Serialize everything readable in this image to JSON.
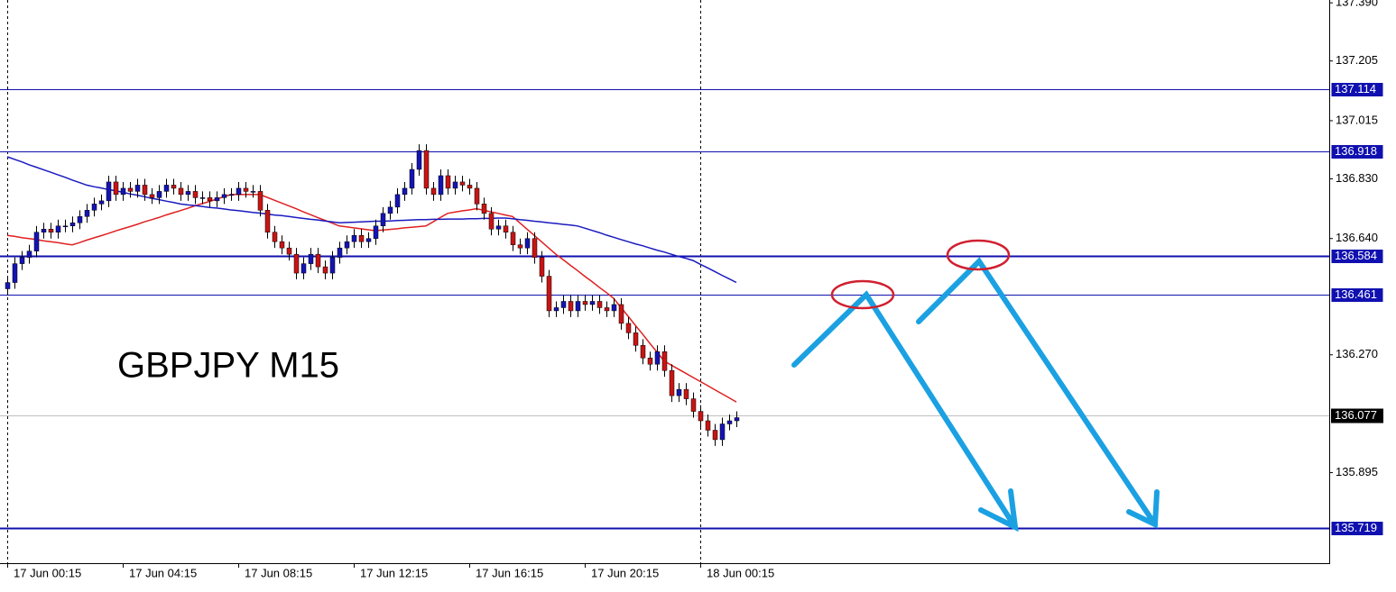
{
  "chart_data": {
    "type": "candlestick",
    "title": "GBPJPY M15",
    "categories": [
      "17 Jun 00:15",
      null,
      null,
      null,
      null,
      null,
      null,
      null,
      null,
      null,
      null,
      null,
      null,
      null,
      null,
      null,
      "17 Jun 04:15",
      null,
      null,
      null,
      null,
      null,
      null,
      null,
      null,
      null,
      null,
      null,
      null,
      null,
      null,
      null,
      "17 Jun 08:15",
      null,
      null,
      null,
      null,
      null,
      null,
      null,
      null,
      null,
      null,
      null,
      null,
      null,
      null,
      null,
      "17 Jun 12:15",
      null,
      null,
      null,
      null,
      null,
      null,
      null,
      null,
      null,
      null,
      null,
      null,
      null,
      null,
      null,
      "17 Jun 16:15",
      null,
      null,
      null,
      null,
      null,
      null,
      null,
      null,
      null,
      null,
      null,
      null,
      null,
      null,
      null,
      "17 Jun 20:15",
      null,
      null,
      null,
      null,
      null,
      null,
      null,
      null,
      null,
      null,
      null,
      null,
      null,
      null,
      null,
      "18 Jun 00:15",
      null,
      null,
      null,
      null,
      null
    ],
    "open": [
      136.48,
      136.5,
      136.56,
      136.58,
      136.6,
      136.66,
      136.67,
      136.66,
      136.68,
      136.68,
      136.69,
      136.71,
      136.73,
      136.75,
      136.76,
      136.82,
      136.78,
      136.8,
      136.79,
      136.81,
      136.78,
      136.77,
      136.79,
      136.81,
      136.8,
      136.78,
      136.79,
      136.77,
      136.77,
      136.76,
      136.77,
      136.78,
      136.78,
      136.8,
      136.79,
      136.79,
      136.73,
      136.66,
      136.63,
      136.61,
      136.59,
      136.53,
      136.56,
      136.59,
      136.55,
      136.53,
      136.58,
      136.61,
      136.63,
      136.65,
      136.63,
      136.64,
      136.68,
      136.72,
      136.74,
      136.78,
      136.8,
      136.86,
      136.92,
      136.8,
      136.78,
      136.84,
      136.8,
      136.82,
      136.81,
      136.8,
      136.75,
      136.72,
      136.67,
      136.68,
      136.66,
      136.62,
      136.61,
      136.64,
      136.58,
      136.52,
      136.41,
      136.42,
      136.44,
      136.41,
      136.44,
      136.43,
      136.44,
      136.42,
      136.41,
      136.43,
      136.37,
      136.34,
      136.3,
      136.26,
      136.24,
      136.28,
      136.22,
      136.14,
      136.16,
      136.13,
      136.09,
      136.06,
      136.03,
      136.0,
      136.05,
      136.06
    ],
    "high": [
      136.52,
      136.58,
      136.6,
      136.62,
      136.68,
      136.69,
      136.69,
      136.7,
      136.7,
      136.71,
      136.73,
      136.75,
      136.77,
      136.78,
      136.84,
      136.84,
      136.82,
      136.82,
      136.83,
      136.83,
      136.8,
      136.81,
      136.83,
      136.83,
      136.82,
      136.81,
      136.81,
      136.79,
      136.79,
      136.79,
      136.8,
      136.8,
      136.82,
      136.82,
      136.81,
      136.81,
      136.75,
      136.68,
      136.65,
      136.63,
      136.61,
      136.58,
      136.61,
      136.61,
      136.57,
      136.6,
      136.63,
      136.65,
      136.67,
      136.67,
      136.66,
      136.7,
      136.74,
      136.76,
      136.8,
      136.82,
      136.88,
      136.94,
      136.94,
      136.82,
      136.86,
      136.86,
      136.84,
      136.84,
      136.83,
      136.82,
      136.77,
      136.74,
      136.7,
      136.7,
      136.68,
      136.64,
      136.66,
      136.66,
      136.6,
      136.54,
      136.44,
      136.46,
      136.46,
      136.46,
      136.46,
      136.46,
      136.46,
      136.44,
      136.45,
      136.45,
      136.39,
      136.36,
      136.32,
      136.28,
      136.3,
      136.3,
      136.24,
      136.18,
      136.18,
      136.15,
      136.11,
      136.08,
      136.05,
      136.07,
      136.08,
      136.09
    ],
    "low": [
      136.46,
      136.48,
      136.54,
      136.56,
      136.58,
      136.64,
      136.64,
      136.64,
      136.66,
      136.66,
      136.67,
      136.69,
      136.71,
      136.73,
      136.74,
      136.76,
      136.76,
      136.77,
      136.77,
      136.76,
      136.75,
      136.75,
      136.77,
      136.78,
      136.76,
      136.76,
      136.75,
      136.75,
      136.74,
      136.74,
      136.75,
      136.76,
      136.76,
      136.77,
      136.77,
      136.71,
      136.64,
      136.61,
      136.59,
      136.57,
      136.51,
      136.51,
      136.54,
      136.53,
      136.51,
      136.51,
      136.56,
      136.59,
      136.61,
      136.61,
      136.61,
      136.62,
      136.66,
      136.7,
      136.72,
      136.76,
      136.78,
      136.84,
      136.78,
      136.76,
      136.76,
      136.78,
      136.78,
      136.79,
      136.78,
      136.73,
      136.7,
      136.65,
      136.65,
      136.64,
      136.6,
      136.59,
      136.59,
      136.56,
      136.5,
      136.39,
      136.39,
      136.4,
      136.39,
      136.39,
      136.41,
      136.41,
      136.4,
      136.39,
      136.39,
      136.35,
      136.32,
      136.28,
      136.24,
      136.22,
      136.22,
      136.2,
      136.12,
      136.12,
      136.11,
      136.07,
      136.04,
      136.01,
      135.98,
      135.98,
      136.03,
      136.04
    ],
    "close": [
      136.5,
      136.56,
      136.58,
      136.6,
      136.66,
      136.67,
      136.66,
      136.68,
      136.68,
      136.69,
      136.71,
      136.73,
      136.75,
      136.76,
      136.82,
      136.78,
      136.8,
      136.79,
      136.81,
      136.78,
      136.77,
      136.79,
      136.81,
      136.8,
      136.78,
      136.79,
      136.77,
      136.77,
      136.76,
      136.77,
      136.78,
      136.78,
      136.8,
      136.79,
      136.79,
      136.73,
      136.66,
      136.63,
      136.61,
      136.59,
      136.53,
      136.56,
      136.59,
      136.55,
      136.53,
      136.58,
      136.61,
      136.63,
      136.65,
      136.63,
      136.64,
      136.68,
      136.72,
      136.74,
      136.78,
      136.8,
      136.86,
      136.92,
      136.8,
      136.78,
      136.84,
      136.8,
      136.82,
      136.81,
      136.8,
      136.75,
      136.72,
      136.67,
      136.68,
      136.66,
      136.62,
      136.61,
      136.64,
      136.58,
      136.52,
      136.41,
      136.42,
      136.44,
      136.41,
      136.44,
      136.43,
      136.44,
      136.42,
      136.41,
      136.43,
      136.37,
      136.34,
      136.3,
      136.26,
      136.24,
      136.28,
      136.22,
      136.14,
      136.16,
      136.13,
      136.09,
      136.06,
      136.03,
      136.0,
      136.05,
      136.06,
      136.07
    ],
    "up_color": "#1414b4",
    "down_color": "#c81414",
    "lines": [
      {
        "color": "#e02020",
        "values": [
          136.65,
          136.647,
          136.643,
          136.64,
          136.637,
          136.633,
          136.63,
          136.627,
          136.623,
          136.62,
          136.627,
          136.635,
          136.642,
          136.649,
          136.656,
          136.664,
          136.671,
          136.678,
          136.685,
          136.693,
          136.7,
          136.707,
          136.715,
          136.722,
          136.729,
          136.736,
          136.744,
          136.751,
          136.758,
          136.765,
          136.773,
          136.78,
          136.78,
          136.78,
          136.78,
          136.78,
          136.771,
          136.762,
          136.753,
          136.744,
          136.735,
          136.725,
          136.716,
          136.707,
          136.698,
          136.689,
          136.68,
          136.677,
          136.674,
          136.671,
          136.668,
          136.665,
          136.667,
          136.669,
          136.671,
          136.674,
          136.676,
          136.678,
          136.68,
          136.693,
          136.707,
          136.72,
          136.724,
          136.728,
          136.731,
          136.735,
          136.73,
          136.725,
          136.72,
          136.715,
          136.71,
          136.69,
          136.67,
          136.65,
          136.63,
          136.61,
          136.59,
          136.573,
          136.555,
          136.538,
          136.52,
          136.503,
          136.485,
          136.468,
          136.45,
          136.421,
          136.393,
          136.364,
          136.336,
          136.307,
          136.279,
          136.25,
          136.237,
          136.224,
          136.211,
          136.198,
          136.185,
          136.172,
          136.159,
          136.146,
          136.133,
          136.12
        ]
      },
      {
        "color": "#1a1ac0",
        "values": [
          136.9,
          136.892,
          136.884,
          136.875,
          136.867,
          136.859,
          136.851,
          136.843,
          136.835,
          136.826,
          136.818,
          136.81,
          136.805,
          136.801,
          136.796,
          136.792,
          136.787,
          136.782,
          136.778,
          136.773,
          136.768,
          136.764,
          136.759,
          136.755,
          136.75,
          136.747,
          136.745,
          136.742,
          136.739,
          136.737,
          136.734,
          136.731,
          136.729,
          136.726,
          136.723,
          136.721,
          136.718,
          136.715,
          136.713,
          136.71,
          136.707,
          136.704,
          136.701,
          136.699,
          136.696,
          136.693,
          136.69,
          136.691,
          136.692,
          136.693,
          136.694,
          136.695,
          136.695,
          136.696,
          136.697,
          136.698,
          136.699,
          136.7,
          136.7,
          136.701,
          136.701,
          136.702,
          136.702,
          136.702,
          136.703,
          136.703,
          136.704,
          136.704,
          136.705,
          136.705,
          136.703,
          136.7,
          136.698,
          136.695,
          136.693,
          136.69,
          136.688,
          136.685,
          136.683,
          136.68,
          136.673,
          136.666,
          136.659,
          136.651,
          136.644,
          136.637,
          136.63,
          136.623,
          136.617,
          136.61,
          136.603,
          136.597,
          136.59,
          136.583,
          136.577,
          136.57,
          136.558,
          136.547,
          136.535,
          136.523,
          136.512,
          136.5
        ]
      }
    ],
    "levels": [
      137.114,
      136.918,
      136.584,
      136.461,
      135.719
    ],
    "level_color": "#1010b0",
    "current_price": 136.077,
    "ylim": [
      135.607,
      137.399
    ],
    "yticks": [
      {
        "value": 137.39,
        "label": "137.390"
      },
      137.205,
      137.015,
      {
        "value": 136.83,
        "label": "136.830"
      },
      {
        "value": 136.64,
        "label": "136.640"
      },
      {
        "value": 136.27,
        "label": "136.270"
      },
      135.895
    ]
  }
}
